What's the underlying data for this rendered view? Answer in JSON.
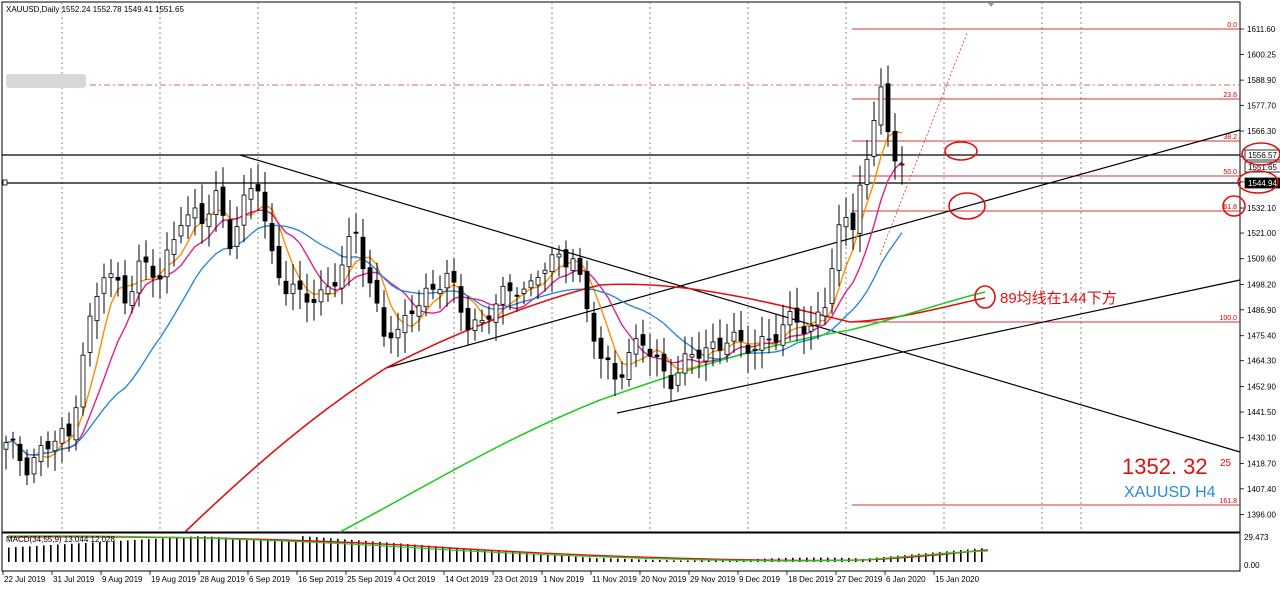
{
  "header": "XAUUSD,Daily  1552.24 1552.78 1549.41 1551.65",
  "chart_data": {
    "type": "candlestick",
    "symbol": "XAUUSD",
    "timeframe": "Daily",
    "ohlc_header": {
      "open": 1552.24,
      "high": 1552.78,
      "low": 1549.41,
      "close": 1551.65
    },
    "ylim": [
      1390,
      1620
    ],
    "y_ticks": [
      1611.6,
      1600.25,
      1588.9,
      1577.7,
      1566.3,
      1555.05,
      1543.7,
      1532.1,
      1521.0,
      1509.6,
      1498.2,
      1486.9,
      1475.4,
      1464.3,
      1452.9,
      1441.5,
      1430.1,
      1418.7,
      1407.4,
      1396.0
    ],
    "x_ticks": [
      "22 Jul 2019",
      "31 Jul 2019",
      "9 Aug 2019",
      "19 Aug 2019",
      "28 Aug 2019",
      "6 Sep 2019",
      "16 Sep 2019",
      "25 Sep 2019",
      "4 Oct 2019",
      "14 Oct 2019",
      "23 Oct 2019",
      "1 Nov 2019",
      "11 Nov 2019",
      "20 Nov 2019",
      "29 Nov 2019",
      "9 Dec 2019",
      "18 Dec 2019",
      "27 Dec 2019",
      "6 Jan 2020",
      "15 Jan 2020"
    ],
    "price_tags": [
      "1556.57",
      "1551.65",
      "1544.94"
    ],
    "fibonacci": [
      {
        "level": "0.0",
        "price": 1611.6
      },
      {
        "level": "23.6",
        "price": 1578.6
      },
      {
        "level": "38.2",
        "price": 1558.1
      },
      {
        "level": "50.0",
        "price": 1541.6
      },
      {
        "level": "61.8",
        "price": 1525.1
      },
      {
        "level": "100.0",
        "price": 1471.6
      },
      {
        "level": "161.8",
        "price": 1385.0
      }
    ],
    "annotations": {
      "ma_note": "89均线在144下方",
      "big_number": "1352. 32",
      "big_number_sup": "25",
      "watermark": "XAUUSD H4"
    },
    "macd": {
      "label": "MACD(34,55,9) 13.044 12.028",
      "y_ticks": [
        "29.473",
        "0.00"
      ]
    },
    "colors": {
      "ma_fast": "#ff8c00",
      "ma_mid": "#e0208a",
      "ma_slow": "#2a8ad8",
      "ma_89": "#e01010",
      "ma_144": "#22cc22",
      "annotation": "#e01010",
      "watermark": "#2a8ad8"
    }
  }
}
